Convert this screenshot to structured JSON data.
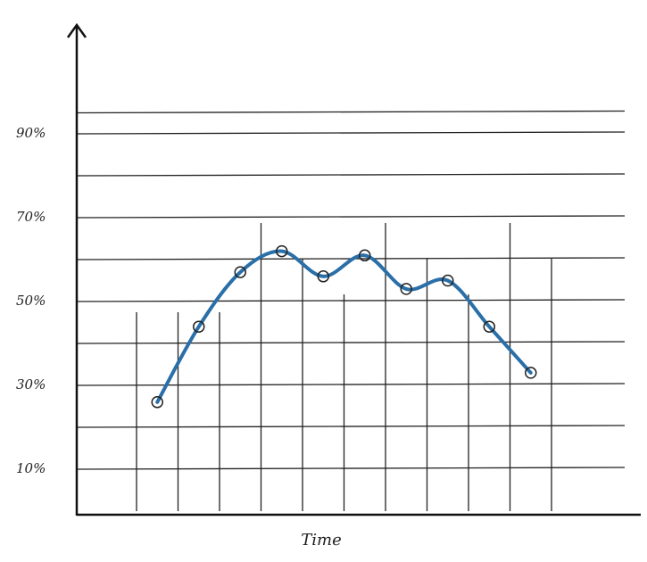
{
  "chart_data": {
    "type": "line",
    "x_label": "Time",
    "categories": [
      null,
      null,
      null,
      null,
      null,
      null,
      null,
      null,
      null,
      null
    ],
    "series": [
      {
        "color": "#2a6fa8",
        "values": [
          26,
          44,
          57,
          62,
          56,
          61,
          53,
          55,
          44,
          33
        ]
      }
    ],
    "ylim": [
      0,
      100
    ],
    "yticks": [
      {
        "value": 10,
        "label": "10%"
      },
      {
        "value": 30,
        "label": "30%"
      },
      {
        "value": 50,
        "label": "50%"
      },
      {
        "value": 70,
        "label": "70%"
      },
      {
        "value": 90,
        "label": "90%"
      }
    ],
    "grid": true
  }
}
